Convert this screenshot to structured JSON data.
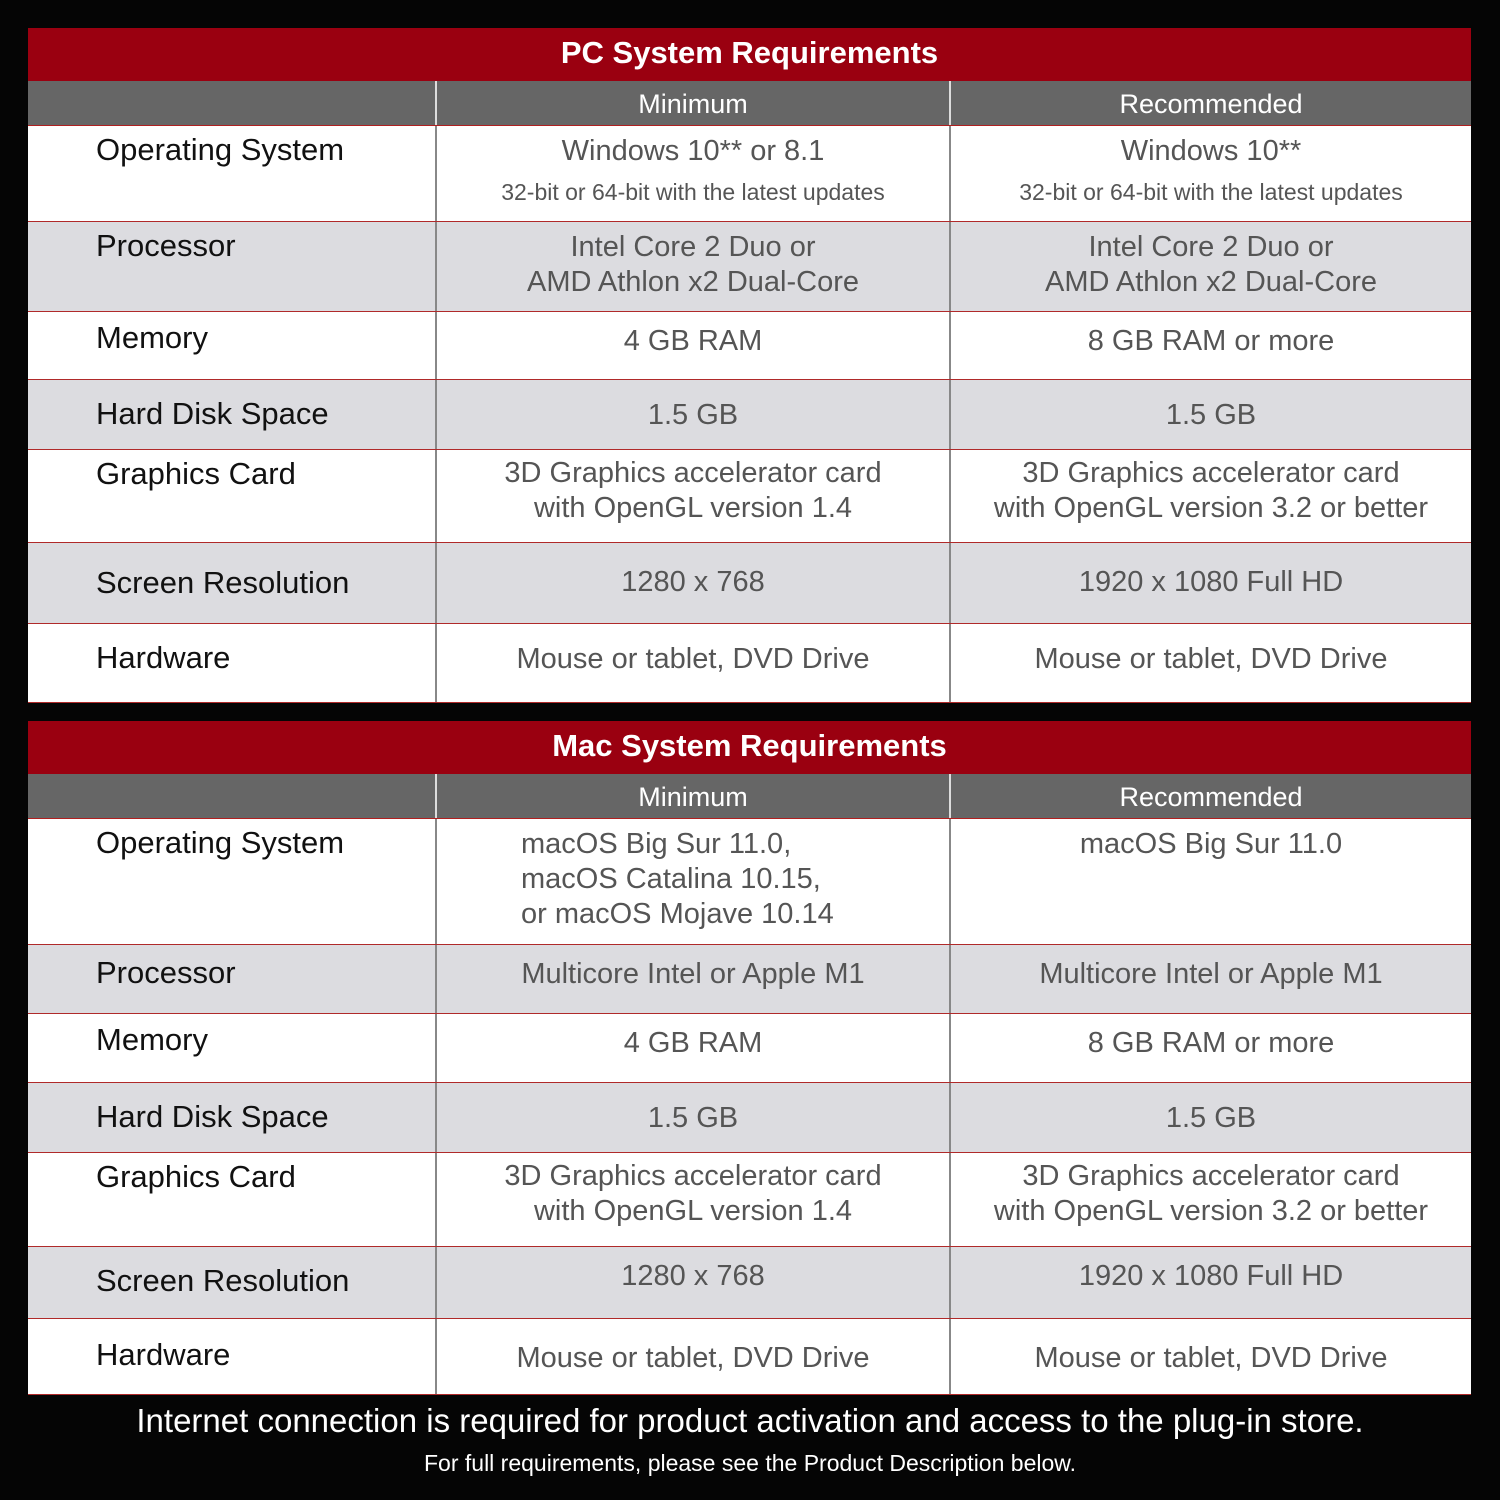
{
  "pc": {
    "title": "PC System Requirements",
    "columns": [
      "",
      "Minimum",
      "Recommended"
    ],
    "rows": [
      {
        "label": "Operating System",
        "minimum": "Windows 10** or 8.1",
        "minimum_note": "32-bit or 64-bit with the latest updates",
        "recommended": "Windows 10**",
        "recommended_note": "32-bit or 64-bit with the latest updates"
      },
      {
        "label": "Processor",
        "minimum": "Intel Core 2 Duo or\nAMD Athlon x2 Dual-Core",
        "recommended": "Intel Core 2 Duo or\nAMD Athlon x2 Dual-Core"
      },
      {
        "label": "Memory",
        "minimum": "4 GB RAM",
        "recommended": "8 GB RAM or more"
      },
      {
        "label": "Hard Disk Space",
        "minimum": "1.5 GB",
        "recommended": "1.5 GB"
      },
      {
        "label": "Graphics Card",
        "minimum": "3D Graphics accelerator card\nwith OpenGL version 1.4",
        "recommended": "3D Graphics accelerator card\nwith OpenGL version 3.2 or better"
      },
      {
        "label": "Screen Resolution",
        "minimum": "1280 x 768",
        "recommended": "1920 x 1080 Full HD"
      },
      {
        "label": "Hardware",
        "minimum": "Mouse or tablet, DVD Drive",
        "recommended": "Mouse or tablet, DVD Drive"
      }
    ]
  },
  "mac": {
    "title": "Mac System Requirements",
    "columns": [
      "",
      "Minimum",
      "Recommended"
    ],
    "rows": [
      {
        "label": "Operating System",
        "minimum": "macOS Big Sur 11.0,\nmacOS Catalina 10.15,\nor macOS Mojave 10.14",
        "recommended": "macOS Big Sur 11.0"
      },
      {
        "label": "Processor",
        "minimum": "Multicore Intel or Apple M1",
        "recommended": "Multicore Intel or Apple M1"
      },
      {
        "label": "Memory",
        "minimum": "4 GB RAM",
        "recommended": "8 GB RAM or more"
      },
      {
        "label": "Hard Disk Space",
        "minimum": "1.5 GB",
        "recommended": "1.5 GB"
      },
      {
        "label": "Graphics Card",
        "minimum": "3D Graphics accelerator card\nwith OpenGL version 1.4",
        "recommended": "3D Graphics accelerator card\nwith OpenGL version 3.2 or better"
      },
      {
        "label": "Screen Resolution",
        "minimum": "1280 x 768",
        "recommended": "1920 x 1080 Full HD"
      },
      {
        "label": "Hardware",
        "minimum": "Mouse or tablet, DVD Drive",
        "recommended": "Mouse or tablet, DVD Drive"
      }
    ]
  },
  "footer": {
    "line1": "Internet connection is required for product activation and access to the plug-in store.",
    "line2": "For full requirements, please see the Product Description below."
  },
  "colors": {
    "header_red": "#9a0010",
    "subheader_gray": "#666666",
    "row_gray": "#dcdce0"
  }
}
